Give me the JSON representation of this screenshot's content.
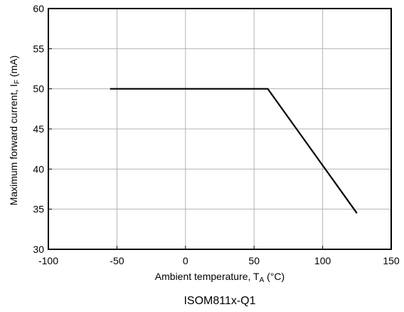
{
  "chart_data": {
    "type": "line",
    "x_ticks": [
      -100,
      -50,
      0,
      50,
      100,
      150
    ],
    "y_ticks": [
      30,
      35,
      40,
      45,
      50,
      55,
      60
    ],
    "xlim": [
      -100,
      150
    ],
    "ylim": [
      30,
      60
    ],
    "grid": true,
    "xlabel": {
      "main": "Ambient temperature, T",
      "sub": "A",
      "unit": " (°C)"
    },
    "ylabel": {
      "main": "Maximum forward current, I",
      "sub": "F",
      "unit": " (mA)"
    },
    "caption": "ISOM811x-Q1",
    "series": [
      {
        "color": "#000000",
        "x": [
          -55,
          60,
          125
        ],
        "y": [
          50,
          50,
          34.5
        ]
      }
    ]
  }
}
